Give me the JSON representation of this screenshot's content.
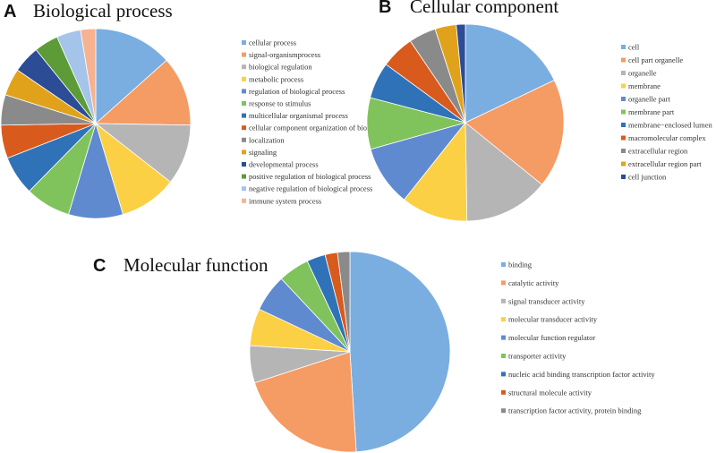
{
  "colors": {
    "palette": [
      "#7aaee0",
      "#f59b64",
      "#b5b5b5",
      "#fcd044",
      "#5f8ad0",
      "#80c35c",
      "#2f72b8",
      "#d85a1d",
      "#8a8a8a",
      "#e0a21b",
      "#2c4c95",
      "#5c9b37",
      "#a4c4ea",
      "#f7b290"
    ]
  },
  "chart_data": [
    {
      "type": "pie",
      "panel": "A",
      "title": "Biological process",
      "categories": [
        "cellular process",
        "signal-organismprocess",
        "biological regulation",
        "metabolic process",
        "regulation of biological process",
        "response to stimulus",
        "multicellular organismal process",
        "cellular component organization of biogensis",
        "localization",
        "signaling",
        "developmental process",
        "positive regulation of biological process",
        "negative regulation of biological process",
        "immune system process"
      ],
      "values": [
        13.0,
        11.5,
        10.0,
        9.5,
        9.0,
        7.5,
        6.5,
        5.5,
        5.0,
        4.5,
        4.5,
        4.0,
        4.0,
        2.5
      ],
      "legend": "right"
    },
    {
      "type": "pie",
      "panel": "B",
      "title": "Cellular component",
      "categories": [
        "cell",
        "cell part organelle",
        "organelle",
        "membrane",
        "organelle part",
        "membrane part",
        "membrane−enclosed lumen",
        "macromolecular complex",
        "extracellular region",
        "extracellular region part",
        "cell junction"
      ],
      "values": [
        18.0,
        18.0,
        14.0,
        11.0,
        10.0,
        8.5,
        6.0,
        5.5,
        4.5,
        3.5,
        1.5
      ],
      "legend": "right"
    },
    {
      "type": "pie",
      "panel": "C",
      "title": "Molecular function",
      "categories": [
        "binding",
        "catalytic activity",
        "signal transducer activity",
        "molecular transducer activity",
        "molecular function regulator",
        "transporter activity",
        "nucleic acid binding transcription factor activity",
        "structural molecule activity",
        "transcription factor activity, protein binding"
      ],
      "values": [
        49.0,
        21.0,
        6.0,
        6.0,
        6.0,
        5.0,
        3.0,
        2.0,
        2.0
      ],
      "legend": "right"
    }
  ]
}
